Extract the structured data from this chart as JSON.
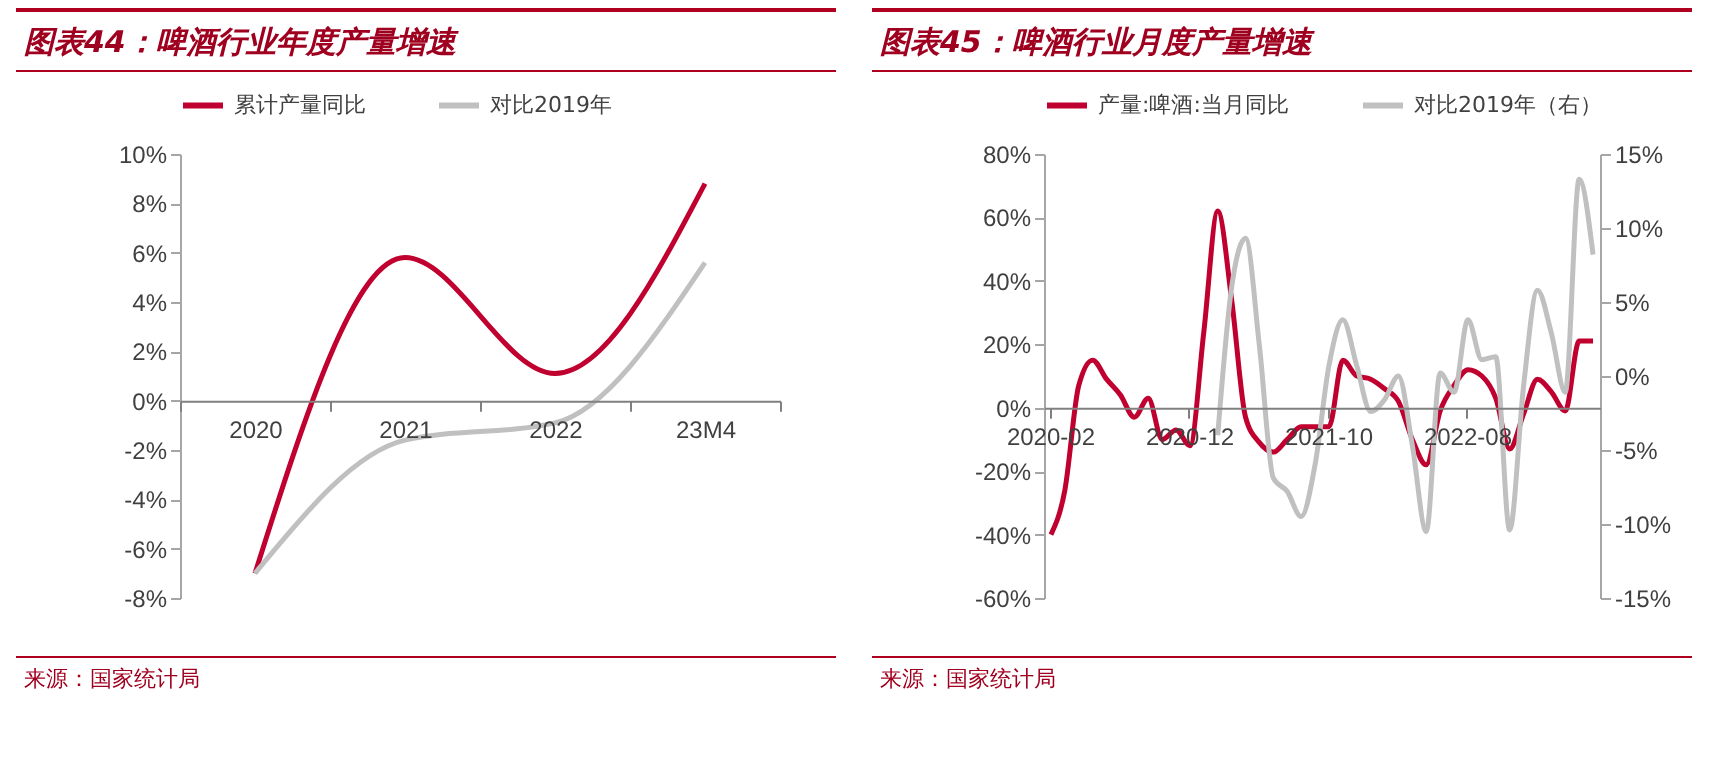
{
  "chart_data": [
    {
      "type": "line",
      "title": "图表44：啤酒行业年度产量增速",
      "categories": [
        "2020",
        "2021",
        "2022",
        "23M4"
      ],
      "series": [
        {
          "name": "累计产量同比",
          "color": "#c0002f",
          "values": [
            -7,
            5.8,
            1.1,
            8.8
          ]
        },
        {
          "name": "对比2019年",
          "color": "#c0c0c0",
          "values": [
            -7,
            -1.6,
            -0.9,
            5.6
          ]
        }
      ],
      "ylim": [
        -8,
        10
      ],
      "yticks": [
        {
          "value": -8,
          "label": "-8%"
        },
        {
          "value": -6,
          "label": "-6%"
        },
        {
          "value": -4,
          "label": "-4%"
        },
        {
          "value": -2,
          "label": "-2%"
        },
        {
          "value": 0,
          "label": "0%"
        },
        {
          "value": 2,
          "label": "2%"
        },
        {
          "value": 4,
          "label": "4%"
        },
        {
          "value": 6,
          "label": "6%"
        },
        {
          "value": 8,
          "label": "8%"
        },
        {
          "value": 10,
          "label": "10%"
        }
      ],
      "legend": "top",
      "marker": "none",
      "annotations": [
        "来源：国家统计局"
      ]
    },
    {
      "type": "line",
      "title": "图表45：啤酒行业月度产量增速",
      "categories": [
        "2020-02",
        null,
        null,
        null,
        null,
        null,
        null,
        null,
        null,
        null,
        "2020-12",
        null,
        null,
        null,
        null,
        null,
        null,
        null,
        null,
        null,
        "2021-10",
        null,
        null,
        null,
        null,
        null,
        null,
        null,
        null,
        null,
        "2022-08",
        null,
        null,
        null,
        null,
        null,
        null,
        null,
        null,
        null
      ],
      "series": [
        {
          "name": "产量:啤酒:当月同比",
          "color": "#c0002f",
          "values": [
            -40,
            -26,
            7,
            15,
            9,
            4,
            -3,
            3,
            -10,
            -7,
            -12,
            24,
            62,
            34,
            -3,
            -11,
            -14,
            -10,
            -6,
            -6,
            -6,
            15,
            10,
            9,
            6,
            2,
            -10,
            -18,
            -1,
            7,
            12,
            10,
            3,
            -13,
            -2,
            9,
            5,
            -1,
            21,
            21
          ]
        },
        {
          "name": "对比2019年（右）",
          "color": "#c0c0c0",
          "axis": "y2",
          "values": [
            null,
            null,
            null,
            null,
            null,
            null,
            null,
            null,
            null,
            null,
            null,
            null,
            -4,
            6,
            9.3,
            2,
            -6.9,
            -7.8,
            -9.5,
            -6,
            0.7,
            3.8,
            0.7,
            -2.4,
            -1.6,
            0,
            -4.7,
            -10.5,
            0.2,
            -1.1,
            3.8,
            1.1,
            1.3,
            -10.4,
            -0.7,
            5.8,
            2.9,
            -1.1,
            13.3,
            8.2
          ]
        }
      ],
      "ylim": [
        -60,
        80
      ],
      "yticks": [
        {
          "value": -60,
          "label": "-60%"
        },
        {
          "value": -40,
          "label": "-40%"
        },
        {
          "value": -20,
          "label": "-20%"
        },
        {
          "value": 0,
          "label": "0%"
        },
        {
          "value": 20,
          "label": "20%"
        },
        {
          "value": 40,
          "label": "40%"
        },
        {
          "value": 60,
          "label": "60%"
        },
        {
          "value": 80,
          "label": "80%"
        }
      ],
      "y2lim": [
        -15,
        15
      ],
      "y2ticks": [
        {
          "value": -15,
          "label": "-15%"
        },
        {
          "value": -10,
          "label": "-10%"
        },
        {
          "value": -5,
          "label": "-5%"
        },
        {
          "value": 0,
          "label": "0%"
        },
        {
          "value": 5,
          "label": "5%"
        },
        {
          "value": 10,
          "label": "10%"
        },
        {
          "value": 15,
          "label": "15%"
        }
      ],
      "legend": "top",
      "marker": "none",
      "annotations": [
        "来源：国家统计局"
      ]
    }
  ]
}
